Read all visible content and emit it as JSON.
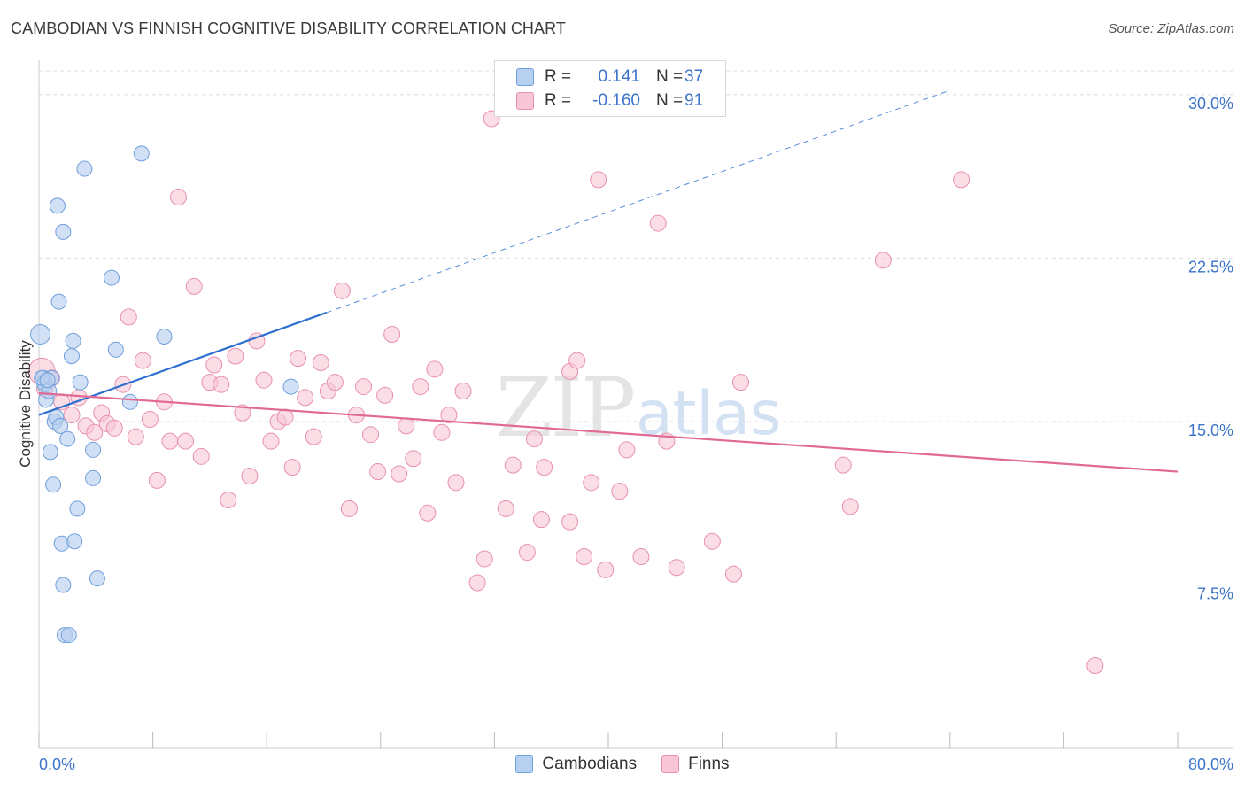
{
  "title": "CAMBODIAN VS FINNISH COGNITIVE DISABILITY CORRELATION CHART",
  "source": "Source: ZipAtlas.com",
  "watermark": {
    "zip": "ZIP",
    "atlas": "atlas"
  },
  "legend": {
    "rows": [
      {
        "r_label": "R =",
        "r_value": "0.141",
        "n_label": "N =",
        "n_value": "37"
      },
      {
        "r_label": "R =",
        "r_value": "-0.160",
        "n_label": "N =",
        "n_value": "91"
      }
    ]
  },
  "bottom_legend": {
    "series1": "Cambodians",
    "series2": "Finns"
  },
  "colors": {
    "blue_fill": "#b8d0f0",
    "blue_stroke": "#6f9fdc",
    "blue_line": "#2f6fcf",
    "pink_fill": "#f8c6d6",
    "pink_stroke": "#e890ac",
    "pink_line": "#e06a93",
    "tick_label": "#3b74c9",
    "grid": "#dcdcdc"
  },
  "chart_data": {
    "type": "scatter",
    "title": "CAMBODIAN VS FINNISH COGNITIVE DISABILITY CORRELATION CHART",
    "xlabel": "",
    "ylabel": "Cognitive Disability",
    "xlim": [
      0,
      80
    ],
    "ylim": [
      0,
      31.5
    ],
    "x_tick_labels": [
      "0.0%",
      "80.0%"
    ],
    "y_ticks": [
      7.5,
      15.0,
      22.5,
      30.0
    ],
    "y_tick_labels": [
      "7.5%",
      "15.0%",
      "22.5%",
      "30.0%"
    ],
    "grid": true,
    "series": [
      {
        "name": "Cambodians",
        "R": 0.141,
        "N": 37,
        "trend": {
          "x0": 0,
          "y0": 15.3,
          "x1": 20.2,
          "y1": 20.0,
          "dashed_to_x": 64.0,
          "dashed_to_y": 30.2
        },
        "points": [
          [
            0.1,
            19.0
          ],
          [
            0.3,
            17.0
          ],
          [
            0.4,
            16.8
          ],
          [
            0.4,
            16.7
          ],
          [
            0.5,
            16.0
          ],
          [
            0.7,
            16.4
          ],
          [
            0.8,
            13.6
          ],
          [
            0.9,
            17.0
          ],
          [
            1.0,
            12.1
          ],
          [
            1.1,
            15.0
          ],
          [
            1.2,
            15.2
          ],
          [
            1.3,
            24.9
          ],
          [
            1.4,
            20.5
          ],
          [
            1.5,
            14.8
          ],
          [
            1.6,
            9.4
          ],
          [
            1.7,
            7.5
          ],
          [
            1.7,
            23.7
          ],
          [
            1.8,
            5.2
          ],
          [
            2.0,
            14.2
          ],
          [
            2.1,
            5.2
          ],
          [
            2.3,
            18.0
          ],
          [
            2.4,
            18.7
          ],
          [
            2.5,
            9.5
          ],
          [
            2.7,
            11.0
          ],
          [
            2.9,
            16.8
          ],
          [
            3.2,
            26.6
          ],
          [
            3.8,
            13.7
          ],
          [
            3.8,
            12.4
          ],
          [
            4.1,
            7.8
          ],
          [
            5.1,
            21.6
          ],
          [
            5.4,
            18.3
          ],
          [
            6.4,
            15.9
          ],
          [
            7.2,
            27.3
          ],
          [
            8.8,
            18.9
          ],
          [
            17.7,
            16.6
          ],
          [
            0.2,
            17.0
          ],
          [
            0.6,
            16.9
          ]
        ]
      },
      {
        "name": "Finns",
        "R": -0.16,
        "N": 91,
        "trend": {
          "x0": 0,
          "y0": 16.3,
          "x1": 80,
          "y1": 12.7
        },
        "points": [
          [
            0.2,
            17.3
          ],
          [
            1.6,
            15.9
          ],
          [
            2.3,
            15.3
          ],
          [
            2.8,
            16.1
          ],
          [
            3.3,
            14.8
          ],
          [
            3.9,
            14.5
          ],
          [
            4.4,
            15.4
          ],
          [
            4.8,
            14.9
          ],
          [
            5.3,
            14.7
          ],
          [
            5.9,
            16.7
          ],
          [
            6.3,
            19.8
          ],
          [
            6.8,
            14.3
          ],
          [
            7.3,
            17.8
          ],
          [
            7.8,
            15.1
          ],
          [
            8.3,
            12.3
          ],
          [
            8.8,
            15.9
          ],
          [
            9.2,
            14.1
          ],
          [
            9.8,
            25.3
          ],
          [
            10.3,
            14.1
          ],
          [
            10.9,
            21.2
          ],
          [
            11.4,
            13.4
          ],
          [
            12.0,
            16.8
          ],
          [
            12.3,
            17.6
          ],
          [
            12.8,
            16.7
          ],
          [
            13.3,
            11.4
          ],
          [
            13.8,
            18.0
          ],
          [
            14.3,
            15.4
          ],
          [
            14.8,
            12.5
          ],
          [
            15.3,
            18.7
          ],
          [
            15.8,
            16.9
          ],
          [
            16.3,
            14.1
          ],
          [
            16.8,
            15.0
          ],
          [
            17.3,
            15.2
          ],
          [
            17.8,
            12.9
          ],
          [
            18.2,
            17.9
          ],
          [
            18.7,
            16.1
          ],
          [
            19.3,
            14.3
          ],
          [
            19.8,
            17.7
          ],
          [
            20.3,
            16.4
          ],
          [
            20.8,
            16.8
          ],
          [
            21.3,
            21.0
          ],
          [
            21.8,
            11.0
          ],
          [
            22.3,
            15.3
          ],
          [
            22.8,
            16.6
          ],
          [
            23.3,
            14.4
          ],
          [
            23.8,
            12.7
          ],
          [
            24.3,
            16.2
          ],
          [
            24.8,
            19.0
          ],
          [
            25.3,
            12.6
          ],
          [
            25.8,
            14.8
          ],
          [
            26.3,
            13.3
          ],
          [
            26.8,
            16.6
          ],
          [
            27.3,
            10.8
          ],
          [
            27.8,
            17.4
          ],
          [
            28.3,
            14.5
          ],
          [
            28.8,
            15.3
          ],
          [
            29.3,
            12.2
          ],
          [
            29.8,
            16.4
          ],
          [
            30.8,
            7.6
          ],
          [
            31.3,
            8.7
          ],
          [
            31.8,
            28.9
          ],
          [
            32.8,
            11.0
          ],
          [
            33.3,
            13.0
          ],
          [
            34.3,
            9.0
          ],
          [
            34.8,
            14.2
          ],
          [
            35.3,
            10.5
          ],
          [
            35.5,
            12.9
          ],
          [
            37.3,
            10.4
          ],
          [
            37.3,
            17.3
          ],
          [
            37.8,
            17.8
          ],
          [
            38.3,
            8.8
          ],
          [
            38.8,
            12.2
          ],
          [
            39.3,
            26.1
          ],
          [
            39.8,
            8.2
          ],
          [
            40.8,
            11.8
          ],
          [
            41.3,
            13.7
          ],
          [
            42.3,
            8.8
          ],
          [
            43.5,
            24.1
          ],
          [
            43.8,
            29.4
          ],
          [
            44.1,
            14.1
          ],
          [
            44.8,
            8.3
          ],
          [
            47.3,
            9.5
          ],
          [
            48.8,
            8.0
          ],
          [
            49.3,
            16.8
          ],
          [
            56.5,
            13.0
          ],
          [
            57.0,
            11.1
          ],
          [
            59.3,
            22.4
          ],
          [
            64.8,
            26.1
          ],
          [
            74.2,
            3.8
          ],
          [
            0.4,
            16.5
          ],
          [
            0.9,
            17.0
          ]
        ]
      }
    ]
  }
}
